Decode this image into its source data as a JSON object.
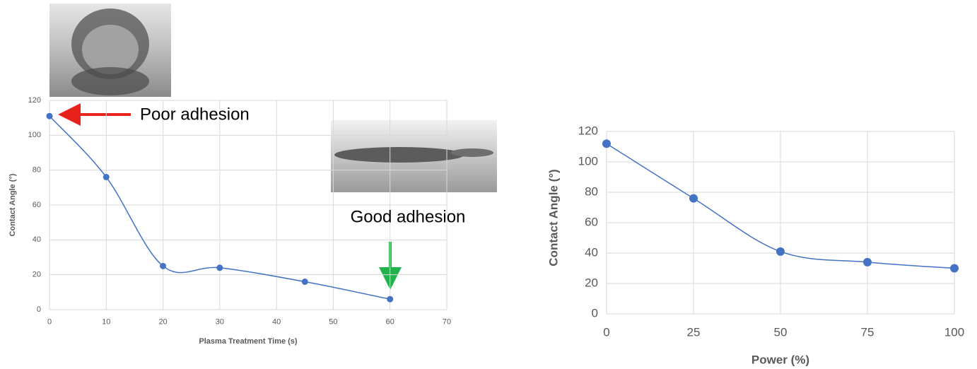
{
  "chart_data": [
    {
      "type": "line",
      "smooth": true,
      "grid": true,
      "color": "#4472c4",
      "y_label": "Contact Angle (°)",
      "x_label": "Plasma Treatment Time (s)",
      "x": [
        0,
        10,
        20,
        30,
        45,
        60
      ],
      "values": [
        111,
        76,
        25,
        24,
        16,
        6
      ],
      "xlim": [
        0,
        70
      ],
      "xticks": [
        0,
        10,
        20,
        30,
        40,
        50,
        60,
        70
      ],
      "ylim": [
        0,
        120
      ],
      "yticks": [
        0,
        20,
        40,
        60,
        80,
        100,
        120
      ],
      "annotations": [
        "Poor adhesion",
        "Good adhesion"
      ]
    },
    {
      "type": "line",
      "smooth": true,
      "grid": true,
      "color": "#4472c4",
      "y_label": "Contact Angle (°)",
      "x_label": "Power (%)",
      "x": [
        0,
        25,
        50,
        75,
        100
      ],
      "values": [
        112,
        76,
        41,
        34,
        30
      ],
      "xlim": [
        0,
        100
      ],
      "xticks": [
        0,
        25,
        50,
        75,
        100
      ],
      "ylim": [
        0,
        120
      ],
      "yticks": [
        0,
        20,
        40,
        60,
        80,
        100,
        120
      ]
    }
  ]
}
